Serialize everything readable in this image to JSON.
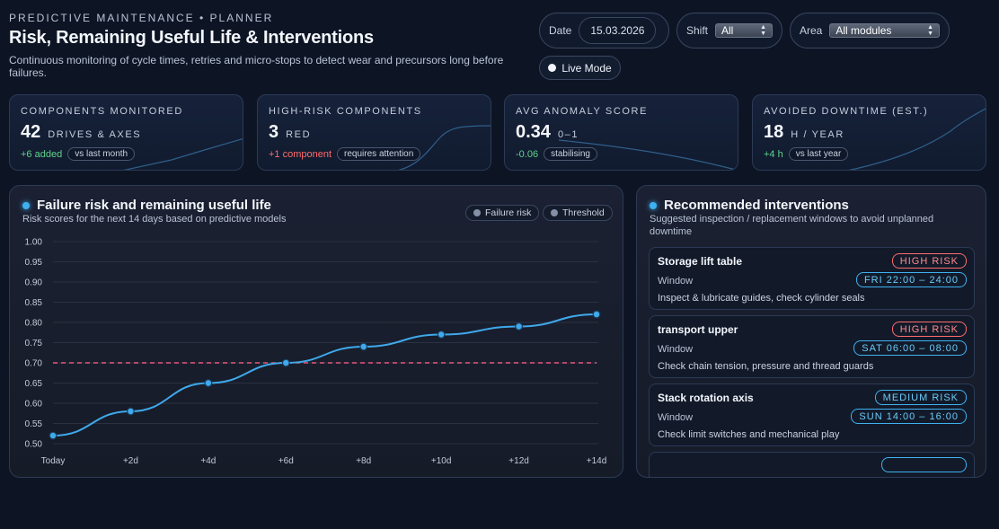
{
  "header": {
    "kicker": "PREDICTIVE MAINTENANCE • PLANNER",
    "title": "Risk, Remaining Useful Life & Interventions",
    "subtitle": "Continuous monitoring of cycle times, retries and micro-stops to detect wear and precursors long before failures."
  },
  "controls": {
    "date_label": "Date",
    "date_value": "15.03.2026",
    "shift_label": "Shift",
    "shift_value": "All",
    "area_label": "Area",
    "area_value": "All modules",
    "live_label": "Live Mode"
  },
  "kpis": [
    {
      "label": "COMPONENTS MONITORED",
      "value": "42",
      "unit": "DRIVES & AXES",
      "delta": "+6 added",
      "delta_type": "positive",
      "chip": "vs last month"
    },
    {
      "label": "HIGH-RISK COMPONENTS",
      "value": "3",
      "unit": "RED",
      "delta": "+1 component",
      "delta_type": "negative",
      "chip": "requires attention"
    },
    {
      "label": "AVG ANOMALY SCORE",
      "value": "0.34",
      "unit": "0–1",
      "delta": "-0.06",
      "delta_type": "positive",
      "chip": "stabilising"
    },
    {
      "label": "AVOIDED DOWNTIME (EST.)",
      "value": "18",
      "unit": "H / YEAR",
      "delta": "+4 h",
      "delta_type": "positive",
      "chip": "vs last year"
    }
  ],
  "risk_panel": {
    "title": "Failure risk and remaining useful life",
    "subtitle": "Risk scores for the next 14 days based on predictive models",
    "legend_risk": "Failure risk",
    "legend_threshold": "Threshold"
  },
  "chart_data": {
    "type": "line",
    "title": "Failure risk and remaining useful life",
    "categories": [
      "Today",
      "+2d",
      "+4d",
      "+6d",
      "+8d",
      "+10d",
      "+12d",
      "+14d"
    ],
    "series": [
      {
        "name": "Failure risk",
        "values": [
          0.52,
          0.58,
          0.65,
          0.7,
          0.74,
          0.77,
          0.79,
          0.82
        ]
      },
      {
        "name": "Threshold",
        "values": [
          0.7,
          0.7,
          0.7,
          0.7,
          0.7,
          0.7,
          0.7,
          0.7
        ]
      }
    ],
    "ylim": [
      0.5,
      1.0
    ],
    "yticks": [
      "1.00",
      "0.95",
      "0.90",
      "0.85",
      "0.80",
      "0.75",
      "0.70",
      "0.65",
      "0.60",
      "0.55",
      "0.50"
    ],
    "colors": {
      "risk": "#3fa9ec",
      "threshold": "#e8577a",
      "grid": "#2a3142"
    }
  },
  "interventions": {
    "title": "Recommended interventions",
    "subtitle": "Suggested inspection / replacement windows to avoid unplanned downtime",
    "window_label": "Window",
    "items": [
      {
        "name": "Storage lift table",
        "risk": "HIGH RISK",
        "level": "high",
        "window": "FRI 22:00 – 24:00",
        "action": "Inspect & lubricate guides, check cylinder seals"
      },
      {
        "name": "transport upper",
        "risk": "HIGH RISK",
        "level": "high",
        "window": "SAT 06:00 – 08:00",
        "action": "Check chain tension, pressure and thread guards"
      },
      {
        "name": "Stack rotation axis",
        "risk": "MEDIUM RISK",
        "level": "medium",
        "window": "SUN 14:00 – 16:00",
        "action": "Check limit switches and mechanical play"
      }
    ]
  }
}
